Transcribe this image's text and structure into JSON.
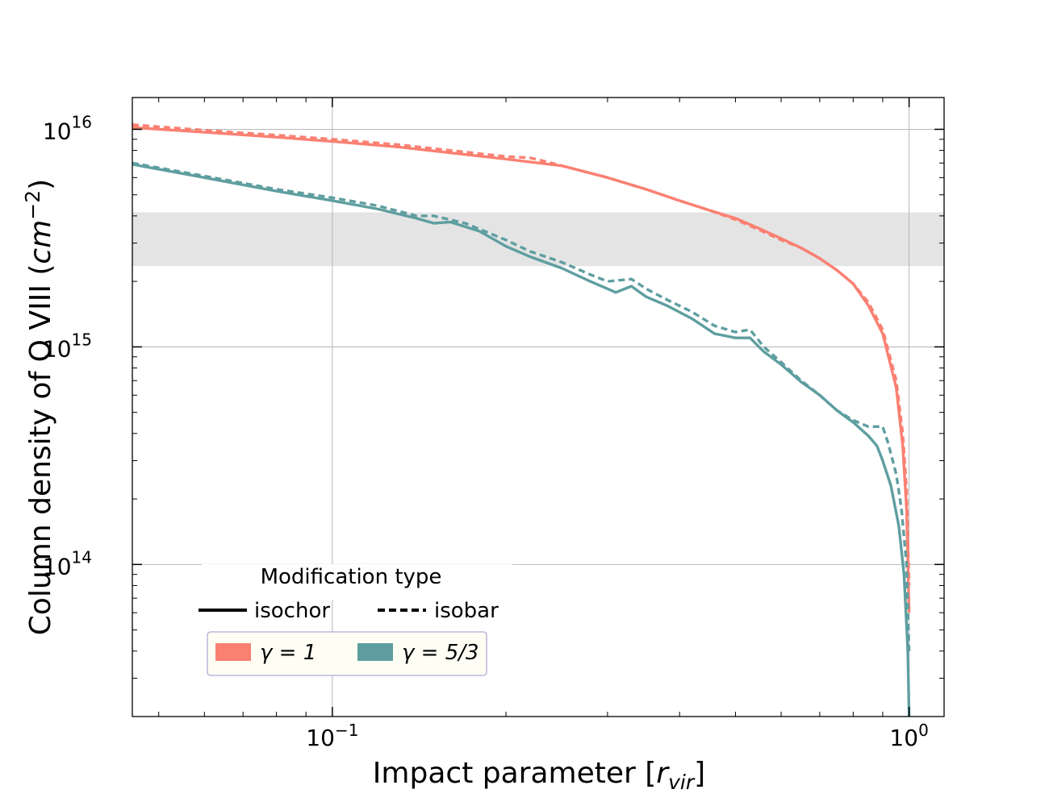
{
  "chart_data": {
    "type": "line",
    "xlabel": "Impact parameter [",
    "xlabel_sym": "r",
    "xlabel_sub": "vir",
    "xlabel_end": "]",
    "ylabel": "Column density of O VIII (",
    "ylabel_unit": "cm",
    "ylabel_exp": "−2",
    "ylabel_end": ")",
    "x_scale": "log",
    "y_scale": "log",
    "xlim": [
      0.045,
      1.15
    ],
    "ylim": [
      20000000000000.0,
      1.4e+16
    ],
    "grid": true,
    "x_ticks": [
      {
        "value": 0.1,
        "base": "10",
        "exp": "−1"
      },
      {
        "value": 1.0,
        "base": "10",
        "exp": "0"
      }
    ],
    "y_ticks": [
      {
        "value": 100000000000000.0,
        "base": "10",
        "exp": "14"
      },
      {
        "value": 1000000000000000.0,
        "base": "10",
        "exp": "15"
      },
      {
        "value": 1e+16,
        "base": "10",
        "exp": "16"
      }
    ],
    "shaded_band": {
      "y_low": 2350000000000000.0,
      "y_high": 4150000000000000.0,
      "color": "#e4e4e4"
    },
    "series": [
      {
        "gamma": "1",
        "type": "isochor",
        "color": "#fa8072",
        "dash": "solid",
        "points": [
          [
            0.045,
            1.02e+16
          ],
          [
            0.06,
            9700000000000000.0
          ],
          [
            0.08,
            9200000000000000.0
          ],
          [
            0.1,
            8800000000000000.0
          ],
          [
            0.13,
            8300000000000000.0
          ],
          [
            0.16,
            7800000000000000.0
          ],
          [
            0.2,
            7300000000000000.0
          ],
          [
            0.25,
            6800000000000000.0
          ],
          [
            0.3,
            6000000000000000.0
          ],
          [
            0.35,
            5300000000000000.0
          ],
          [
            0.4,
            4700000000000000.0
          ],
          [
            0.45,
            4250000000000000.0
          ],
          [
            0.5,
            3900000000000000.0
          ],
          [
            0.55,
            3500000000000000.0
          ],
          [
            0.6,
            3150000000000000.0
          ],
          [
            0.65,
            2850000000000000.0
          ],
          [
            0.7,
            2550000000000000.0
          ],
          [
            0.75,
            2250000000000000.0
          ],
          [
            0.8,
            1950000000000000.0
          ],
          [
            0.85,
            1550000000000000.0
          ],
          [
            0.9,
            1150000000000000.0
          ],
          [
            0.95,
            650000000000000.0
          ],
          [
            0.975,
            350000000000000.0
          ],
          [
            0.99,
            180000000000000.0
          ],
          [
            1.0,
            60000000000000.0
          ]
        ]
      },
      {
        "gamma": "1",
        "type": "isobar",
        "color": "#fa8072",
        "dash": "dashed",
        "points": [
          [
            0.045,
            1.05e+16
          ],
          [
            0.06,
            9900000000000000.0
          ],
          [
            0.08,
            9400000000000000.0
          ],
          [
            0.1,
            9000000000000000.0
          ],
          [
            0.13,
            8500000000000000.0
          ],
          [
            0.16,
            8000000000000000.0
          ],
          [
            0.2,
            7500000000000000.0
          ],
          [
            0.22,
            7400000000000000.0
          ],
          [
            0.24,
            7000000000000000.0
          ],
          [
            0.25,
            6800000000000000.0
          ],
          [
            0.3,
            6000000000000000.0
          ],
          [
            0.35,
            5300000000000000.0
          ],
          [
            0.4,
            4700000000000000.0
          ],
          [
            0.45,
            4250000000000000.0
          ],
          [
            0.5,
            3850000000000000.0
          ],
          [
            0.55,
            3450000000000000.0
          ],
          [
            0.6,
            3100000000000000.0
          ],
          [
            0.65,
            2850000000000000.0
          ],
          [
            0.7,
            2550000000000000.0
          ],
          [
            0.75,
            2250000000000000.0
          ],
          [
            0.8,
            1950000000000000.0
          ],
          [
            0.85,
            1600000000000000.0
          ],
          [
            0.9,
            1200000000000000.0
          ],
          [
            0.95,
            700000000000000.0
          ],
          [
            0.975,
            400000000000000.0
          ],
          [
            0.99,
            220000000000000.0
          ],
          [
            1.0,
            80000000000000.0
          ]
        ]
      },
      {
        "gamma": "5/3",
        "type": "isochor",
        "color": "#5f9ea0",
        "dash": "solid",
        "points": [
          [
            0.045,
            6900000000000000.0
          ],
          [
            0.06,
            6000000000000000.0
          ],
          [
            0.08,
            5200000000000000.0
          ],
          [
            0.1,
            4700000000000000.0
          ],
          [
            0.12,
            4300000000000000.0
          ],
          [
            0.14,
            3900000000000000.0
          ],
          [
            0.15,
            3700000000000000.0
          ],
          [
            0.16,
            3750000000000000.0
          ],
          [
            0.18,
            3400000000000000.0
          ],
          [
            0.2,
            2900000000000000.0
          ],
          [
            0.22,
            2600000000000000.0
          ],
          [
            0.25,
            2300000000000000.0
          ],
          [
            0.28,
            2000000000000000.0
          ],
          [
            0.3,
            1850000000000000.0
          ],
          [
            0.31,
            1780000000000000.0
          ],
          [
            0.33,
            1900000000000000.0
          ],
          [
            0.35,
            1700000000000000.0
          ],
          [
            0.38,
            1550000000000000.0
          ],
          [
            0.42,
            1350000000000000.0
          ],
          [
            0.46,
            1150000000000000.0
          ],
          [
            0.5,
            1100000000000000.0
          ],
          [
            0.53,
            1100000000000000.0
          ],
          [
            0.56,
            950000000000000.0
          ],
          [
            0.6,
            830000000000000.0
          ],
          [
            0.65,
            690000000000000.0
          ],
          [
            0.7,
            600000000000000.0
          ],
          [
            0.75,
            510000000000000.0
          ],
          [
            0.8,
            450000000000000.0
          ],
          [
            0.85,
            390000000000000.0
          ],
          [
            0.88,
            350000000000000.0
          ],
          [
            0.9,
            300000000000000.0
          ],
          [
            0.93,
            230000000000000.0
          ],
          [
            0.96,
            150000000000000.0
          ],
          [
            0.98,
            90000000000000.0
          ],
          [
            0.995,
            40000000000000.0
          ],
          [
            1.0,
            20000000000000.0
          ]
        ]
      },
      {
        "gamma": "5/3",
        "type": "isobar",
        "color": "#5f9ea0",
        "dash": "dashed",
        "points": [
          [
            0.045,
            7000000000000000.0
          ],
          [
            0.06,
            6100000000000000.0
          ],
          [
            0.08,
            5300000000000000.0
          ],
          [
            0.1,
            4850000000000000.0
          ],
          [
            0.12,
            4450000000000000.0
          ],
          [
            0.14,
            4000000000000000.0
          ],
          [
            0.15,
            4000000000000000.0
          ],
          [
            0.17,
            3700000000000000.0
          ],
          [
            0.2,
            3100000000000000.0
          ],
          [
            0.22,
            2750000000000000.0
          ],
          [
            0.25,
            2450000000000000.0
          ],
          [
            0.28,
            2150000000000000.0
          ],
          [
            0.3,
            2000000000000000.0
          ],
          [
            0.33,
            2050000000000000.0
          ],
          [
            0.35,
            1850000000000000.0
          ],
          [
            0.38,
            1650000000000000.0
          ],
          [
            0.42,
            1450000000000000.0
          ],
          [
            0.46,
            1250000000000000.0
          ],
          [
            0.5,
            1170000000000000.0
          ],
          [
            0.53,
            1200000000000000.0
          ],
          [
            0.56,
            1000000000000000.0
          ],
          [
            0.6,
            850000000000000.0
          ],
          [
            0.65,
            700000000000000.0
          ],
          [
            0.7,
            600000000000000.0
          ],
          [
            0.75,
            510000000000000.0
          ],
          [
            0.8,
            460000000000000.0
          ],
          [
            0.85,
            430000000000000.0
          ],
          [
            0.88,
            430000000000000.0
          ],
          [
            0.9,
            430000000000000.0
          ],
          [
            0.92,
            360000000000000.0
          ],
          [
            0.95,
            260000000000000.0
          ],
          [
            0.97,
            180000000000000.0
          ],
          [
            0.99,
            100000000000000.0
          ],
          [
            1.0,
            40000000000000.0
          ]
        ]
      }
    ],
    "legend": {
      "title": "Modification type",
      "styles": [
        {
          "label": "isochor",
          "dash": "solid"
        },
        {
          "label": "isobar",
          "dash": "dashed"
        }
      ],
      "gammas": [
        {
          "label": "γ = 1",
          "color": "#fa8072"
        },
        {
          "label": "γ = 5/3",
          "color": "#5f9ea0"
        }
      ],
      "placement": "lower-left"
    }
  }
}
